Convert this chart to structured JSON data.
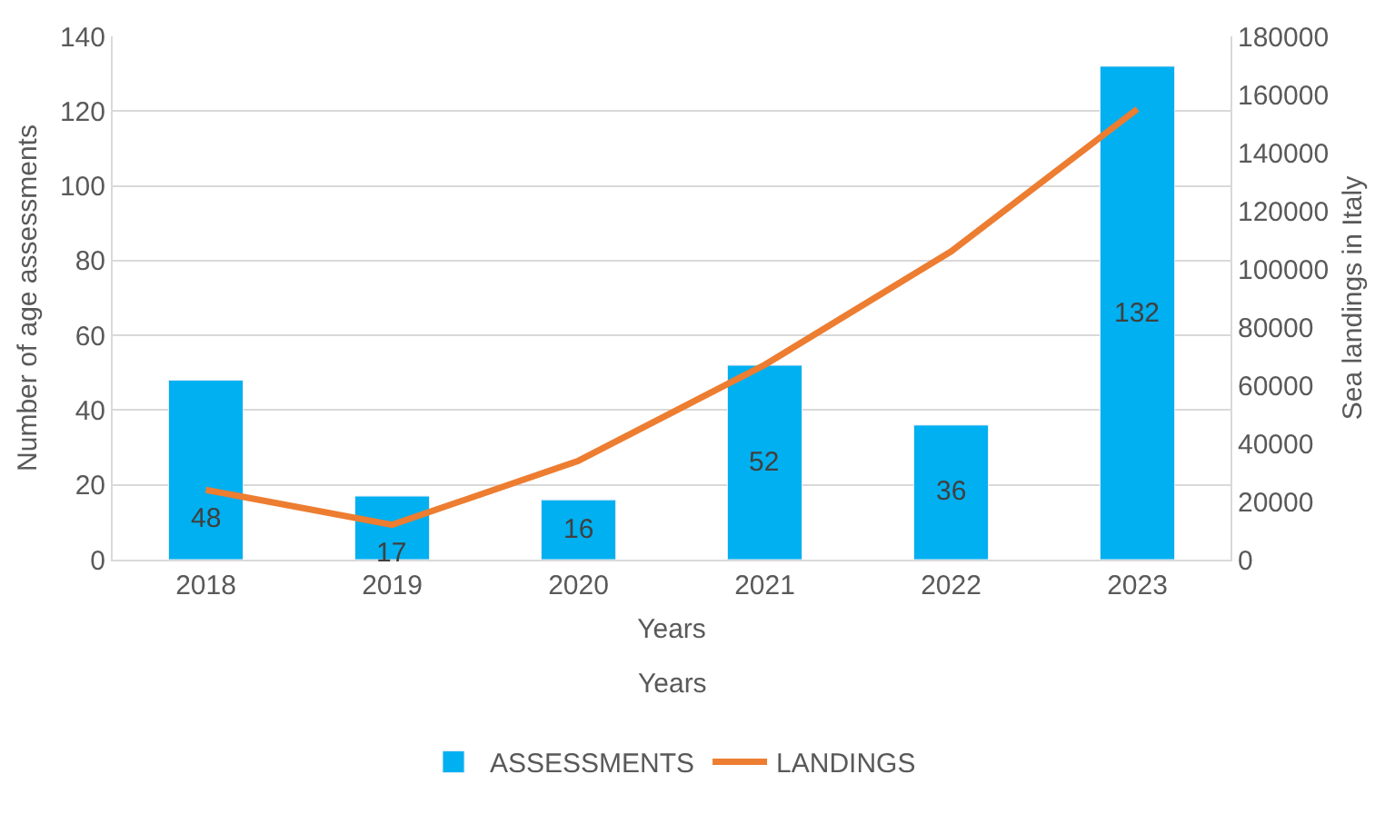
{
  "chart_data": {
    "type": "bar",
    "categories": [
      "2018",
      "2019",
      "2020",
      "2021",
      "2022",
      "2023"
    ],
    "xlabel": "Years",
    "ylabel": "Number of age assessments",
    "y2label": "Sea landings in Italy",
    "series": [
      {
        "name": "ASSESSMENTS",
        "color": "#00b0f0",
        "values": [
          48,
          17,
          16,
          52,
          36,
          132
        ],
        "value_labels": [
          "48",
          "17",
          "16",
          "52",
          "36",
          "132"
        ]
      },
      {
        "name": "LANDINGS",
        "type": "line",
        "axis": "y2",
        "color": "#ed7d31",
        "values": [
          24000,
          12000,
          34000,
          67000,
          106000,
          155000
        ]
      }
    ],
    "annotations": [
      "Years"
    ],
    "ylim": [
      0,
      140
    ],
    "yticks": [
      0,
      20,
      40,
      60,
      80,
      100,
      120,
      140
    ],
    "y2lim": [
      0,
      180000
    ],
    "y2ticks": [
      0,
      20000,
      40000,
      60000,
      80000,
      100000,
      120000,
      140000,
      160000,
      180000
    ],
    "grid": "y",
    "legend": "bottom",
    "marker": "none",
    "line_style": "solid"
  }
}
